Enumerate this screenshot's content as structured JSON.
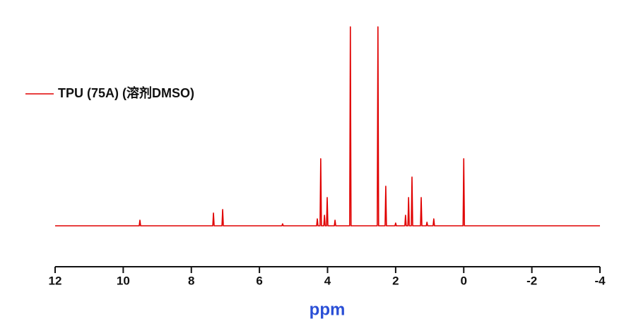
{
  "chart_data": {
    "type": "line",
    "x_label": "ppm",
    "xlim": [
      12,
      -4
    ],
    "ylim": [
      0,
      100
    ],
    "xticks": [
      12,
      10,
      8,
      6,
      4,
      2,
      0,
      -2,
      -4
    ],
    "legend": "upper left",
    "series": [
      {
        "name": "TPU (75A) (溶剂DMSO)",
        "color": "#e00000",
        "x": [
          12,
          9.53,
          9.51,
          9.49,
          7.37,
          7.35,
          7.33,
          7.1,
          7.08,
          7.06,
          5.34,
          5.32,
          5.3,
          4.32,
          4.3,
          4.28,
          4.22,
          4.2,
          4.18,
          4.11,
          4.09,
          4.07,
          4.03,
          4.01,
          3.99,
          3.8,
          3.78,
          3.76,
          3.35,
          3.33,
          3.31,
          2.54,
          2.52,
          2.5,
          2.31,
          2.29,
          2.27,
          2.02,
          2.0,
          1.98,
          1.73,
          1.71,
          1.69,
          1.64,
          1.62,
          1.6,
          1.54,
          1.52,
          1.5,
          1.27,
          1.25,
          1.23,
          1.1,
          1.08,
          1.06,
          0.9,
          0.88,
          0.86,
          0.02,
          0.0,
          -0.02,
          -4
        ],
        "values": [
          0,
          0,
          2.8,
          0,
          0,
          6.4,
          0,
          0,
          8.2,
          0,
          0,
          1,
          0,
          0,
          3.5,
          0,
          0,
          33.7,
          0,
          0,
          5.3,
          0,
          0,
          14.2,
          0,
          0,
          2.8,
          0,
          0,
          100,
          0,
          0,
          100,
          0,
          0,
          19.9,
          0,
          0,
          1.4,
          0,
          0,
          5.3,
          0,
          0,
          14.2,
          0,
          0,
          24.5,
          0,
          0,
          14.2,
          0,
          0,
          1.8,
          0,
          0,
          3.5,
          0,
          0,
          33.7,
          0,
          0
        ]
      }
    ]
  }
}
